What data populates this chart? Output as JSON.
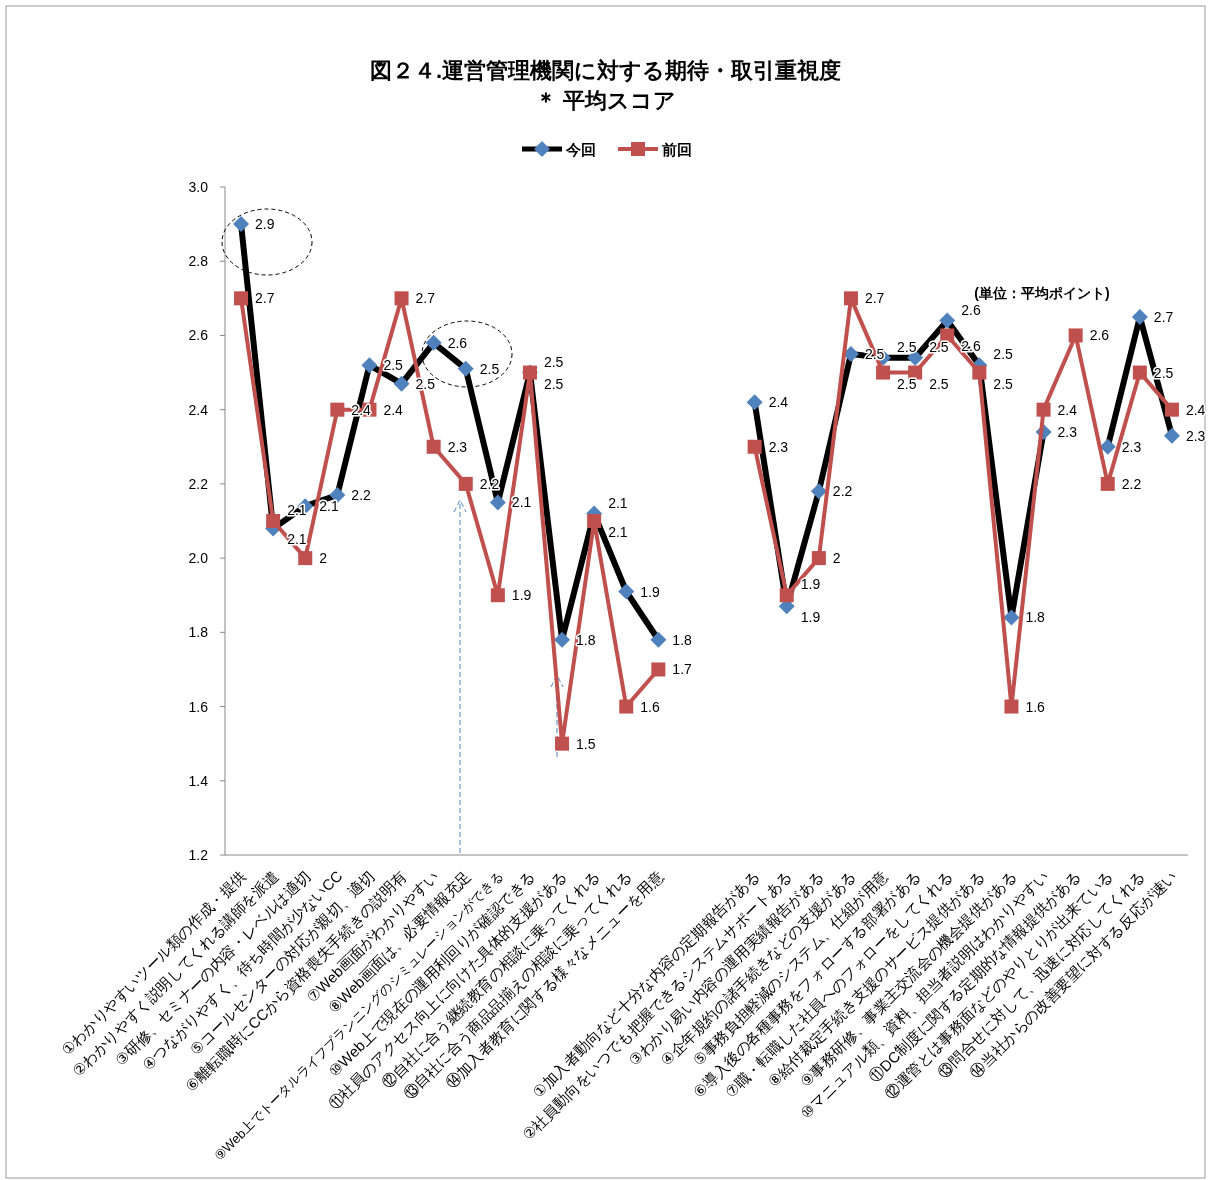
{
  "chart_data": {
    "type": "line",
    "title": "図２４.運営管理機関に対する期待・取引重視度",
    "subtitle": "＊ 平均スコア",
    "categories": [
      "①わかりやすいツール類の作成・提供",
      "②わかりやすく説明してくれる講師を派遣",
      "③研修、セミナーの内容・レベルは適切",
      "④つながりやすく、待ち時間が少ないCC",
      "⑤コールセンターの対応が親切、適切",
      "⑥離転職時にCCから資格喪失手続きの説明有",
      "⑦Web画面がわかりやすい",
      "⑧Web画面は、必要情報充足",
      "⑨Web上でトータルライフプランニングのシミュレーションができる",
      "⑩Web上で現在の運用利回りが確認できる",
      "⑪社員のアクセス向上に向けた具体的支援がある",
      "⑫自社に合う継続教育の相談に乗ってくれる",
      "⑬自社に合う商品品揃えの相談に乗ってくれる",
      "⑭加入者教育に関する様々なメニューを用意",
      null,
      null,
      "①加入者動向など十分な内容の定期報告がある",
      "②社員動向をいつでも把握できるシステムサポートある",
      "③わかり易い内容の運用実績報告がある",
      "④企年規約の諸手続きなどの支援がある",
      "⑤事務負担軽減のシステム、仕組が用意",
      "⑥導入後の各種事務をフォローする部署がある",
      "⑦職・転職した社員へのフォローをしてくれる",
      "⑧給付裁定手続き支援のサービス提供がある",
      "⑨事務研修、事業主交流会の機会提供がある",
      "⑩マニュアル類、資料、担当者説明はわかりやすい",
      "⑪DC制度に関する定期的な情報提供がある",
      "⑫運管とは事務面などのやりとりが出来ている",
      "⑬問合せに対して、迅速に対応してくれる",
      "⑭当社からの改善要望に対する反応が速い"
    ],
    "series": [
      {
        "name": "今回",
        "color": "#000000",
        "marker": "diamond",
        "values": [
          2.9,
          2.08,
          2.14,
          2.17,
          2.52,
          2.47,
          2.58,
          2.51,
          2.15,
          2.5,
          1.78,
          2.12,
          1.91,
          1.78,
          null,
          null,
          2.42,
          1.87,
          2.18,
          2.55,
          2.54,
          2.54,
          2.64,
          2.52,
          1.84,
          2.34,
          null,
          2.3,
          2.65,
          2.33
        ],
        "value_labels": [
          "2.9",
          "2.1",
          "2.1",
          "2.2",
          "2.5",
          "2.5",
          "2.6",
          "2.5",
          "2.1",
          "2.5",
          "1.8",
          "2.1",
          "1.9",
          "1.8",
          null,
          null,
          "2.4",
          "1.9",
          "2.2",
          "2.5",
          "2.5",
          "2.5",
          "2.6",
          "2.5",
          "1.8",
          "2.3",
          null,
          "2.3",
          "2.7",
          "2.3"
        ]
      },
      {
        "name": "前回",
        "color": "#c0504d",
        "marker": "square",
        "values": [
          2.7,
          2.1,
          2.0,
          2.4,
          2.4,
          2.7,
          2.3,
          2.2,
          1.9,
          2.5,
          1.5,
          2.1,
          1.6,
          1.7,
          null,
          null,
          2.3,
          1.9,
          2.0,
          2.7,
          2.5,
          2.5,
          2.6,
          2.5,
          1.6,
          2.4,
          2.6,
          2.2,
          2.5,
          2.4
        ],
        "value_labels": [
          "2.7",
          "2.1",
          "2",
          "2.4",
          "2.4",
          "2.7",
          "2.3",
          "2.2",
          "1.9",
          "2.5",
          "1.5",
          "2.1",
          "1.6",
          "1.7",
          null,
          null,
          "2.3",
          "1.9",
          "2",
          "2.7",
          "2.5",
          "2.5",
          "2.6",
          "2.5",
          "1.6",
          "2.4",
          "2.6",
          "2.2",
          "2.5",
          "2.4"
        ]
      }
    ],
    "ylim": [
      1.2,
      3.0
    ],
    "yticks": [
      {
        "value": 1.2,
        "label": "1.2"
      },
      {
        "value": 1.4,
        "label": "1.4"
      },
      {
        "value": 1.6,
        "label": "1.6"
      },
      {
        "value": 1.8,
        "label": "1.8"
      },
      {
        "value": 2.0,
        "label": "2.0"
      },
      {
        "value": 2.2,
        "label": "2.2"
      },
      {
        "value": 2.4,
        "label": "2.4"
      },
      {
        "value": 2.6,
        "label": "2.6"
      },
      {
        "value": 2.8,
        "label": "2.8"
      },
      {
        "value": 3.0,
        "label": "3.0"
      }
    ],
    "grid": false,
    "legend": "top",
    "annotations": [
      "(単位：平均ポイント)"
    ]
  }
}
